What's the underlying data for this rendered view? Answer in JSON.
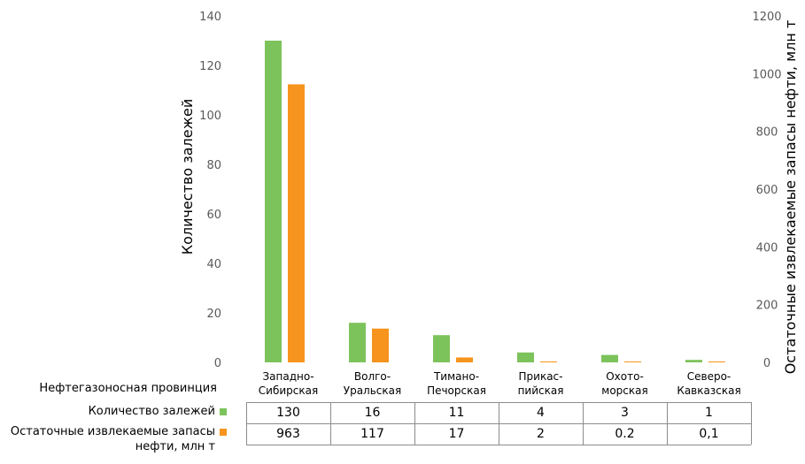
{
  "colors": {
    "count": "#7dc35b",
    "reserves": "#f7941d",
    "grid": "#bfbfbf",
    "tick": "#595959"
  },
  "table": {
    "header_label": "Нефтегазоносная провинция",
    "row_count_label": "Количество залежей",
    "row_reserves_label": "Остаточные извлекаемые запасы нефти, млн т",
    "row_count_values": [
      "130",
      "16",
      "11",
      "4",
      "3",
      "1"
    ],
    "row_reserves_values": [
      "963",
      "117",
      "17",
      "2",
      "0.2",
      "0,1"
    ]
  },
  "chart_data": {
    "type": "bar",
    "categories": [
      [
        "Западно-",
        "Сибирская"
      ],
      [
        "Волго-",
        "Уральская"
      ],
      [
        "Тимано-",
        "Печорская"
      ],
      [
        "Прикас-",
        "пийская"
      ],
      [
        "Охото-",
        "морская"
      ],
      [
        "Северо-",
        "Кавказская"
      ]
    ],
    "series": [
      {
        "name": "Количество залежей",
        "axis": "left",
        "color": "#7dc35b",
        "values": [
          130,
          16,
          11,
          4,
          3,
          1
        ]
      },
      {
        "name": "Остаточные извлекаемые запасы нефти, млн т",
        "axis": "right",
        "color": "#f7941d",
        "values": [
          963,
          117,
          17,
          2,
          0.2,
          0.1
        ]
      }
    ],
    "ylabel_left": "Количество залежей",
    "ylabel_right": "Остаточные извлекаемые запасы нефти, млн т",
    "ylim_left": [
      0,
      140
    ],
    "yticks_left": [
      0,
      20,
      40,
      60,
      80,
      100,
      120,
      140
    ],
    "ylim_right": [
      0,
      1200
    ],
    "yticks_right": [
      0,
      200,
      400,
      600,
      800,
      1000,
      1200
    ],
    "grid": false,
    "legend": "table"
  }
}
